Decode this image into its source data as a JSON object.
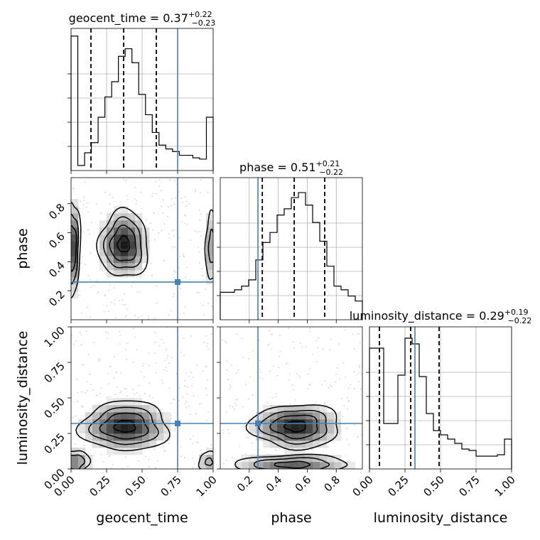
{
  "chart_data": {
    "type": "corner",
    "parameters": [
      "geocent_time",
      "phase",
      "luminosity_distance"
    ],
    "truths": [
      0.75,
      0.26,
      0.32
    ],
    "colors": {
      "truth": "#4682b4",
      "hist": "#000000",
      "grid": "#b0b0b0",
      "points": "#bdbdbd"
    },
    "grid": true,
    "titles": [
      {
        "param": "geocent_time",
        "median": "0.37",
        "plus": "+0.22",
        "minus": "−0.23"
      },
      {
        "param": "phase",
        "median": "0.51",
        "plus": "+0.21",
        "minus": "−0.22"
      },
      {
        "param": "luminosity_distance",
        "median": "0.29",
        "plus": "+0.19",
        "minus": "−0.22"
      }
    ],
    "ranges": [
      [
        0,
        1
      ],
      [
        0.0,
        0.98
      ],
      [
        0,
        1
      ]
    ],
    "ticks": [
      [
        "0.00",
        "0.25",
        "0.50",
        "0.75",
        "1.00"
      ],
      [
        "0.2",
        "0.4",
        "0.6",
        "0.8"
      ],
      [
        "0.00",
        "0.25",
        "0.50",
        "0.75",
        "1.00"
      ]
    ],
    "quantiles": [
      [
        0.14,
        0.37,
        0.6
      ],
      [
        0.29,
        0.51,
        0.72
      ],
      [
        0.07,
        0.29,
        0.49
      ]
    ],
    "histograms": [
      {
        "values": [
          1.06,
          0.04,
          0.14,
          0.22,
          0.42,
          0.58,
          0.7,
          0.9,
          0.96,
          0.85,
          0.6,
          0.44,
          0.3,
          0.2,
          0.17,
          0.15,
          0.12,
          0.12,
          0.1,
          0.09,
          0.42
        ],
        "ymax": 1.12
      },
      {
        "values": [
          0.22,
          0.22,
          0.24,
          0.27,
          0.32,
          0.48,
          0.62,
          0.7,
          0.84,
          0.89,
          0.98,
          1.02,
          0.92,
          0.78,
          0.63,
          0.43,
          0.27,
          0.24,
          0.19,
          0.15
        ],
        "ymax": 1.14
      },
      {
        "values": [
          0.85,
          0.85,
          0.32,
          0.32,
          0.66,
          0.92,
          0.88,
          0.65,
          0.39,
          0.27,
          0.24,
          0.21,
          0.18,
          0.14,
          0.13,
          0.09,
          0.09,
          0.09,
          0.1,
          0.21
        ],
        "ymax": 1.0
      }
    ],
    "pairs": [
      {
        "x": "geocent_time",
        "y": "phase",
        "modes": [
          {
            "cx": 0.37,
            "cy": 0.52,
            "sx": 0.09,
            "sy": 0.12,
            "w": 1.0
          },
          {
            "cx": 0.01,
            "cy": 0.5,
            "sx": 0.03,
            "sy": 0.17,
            "w": 0.9
          },
          {
            "cx": 0.99,
            "cy": 0.5,
            "sx": 0.03,
            "sy": 0.16,
            "w": 0.45
          }
        ]
      },
      {
        "x": "geocent_time",
        "y": "luminosity_distance",
        "modes": [
          {
            "cx": 0.38,
            "cy": 0.3,
            "sx": 0.16,
            "sy": 0.09,
            "w": 1.0
          },
          {
            "cx": 0.03,
            "cy": 0.05,
            "sx": 0.06,
            "sy": 0.05,
            "w": 0.6
          },
          {
            "cx": 0.97,
            "cy": 0.05,
            "sx": 0.05,
            "sy": 0.05,
            "w": 0.4
          }
        ]
      },
      {
        "x": "phase",
        "y": "luminosity_distance",
        "modes": [
          {
            "cx": 0.52,
            "cy": 0.3,
            "sx": 0.16,
            "sy": 0.08,
            "w": 1.0
          },
          {
            "cx": 0.5,
            "cy": 0.03,
            "sx": 0.22,
            "sy": 0.04,
            "w": 0.7
          }
        ]
      }
    ]
  }
}
